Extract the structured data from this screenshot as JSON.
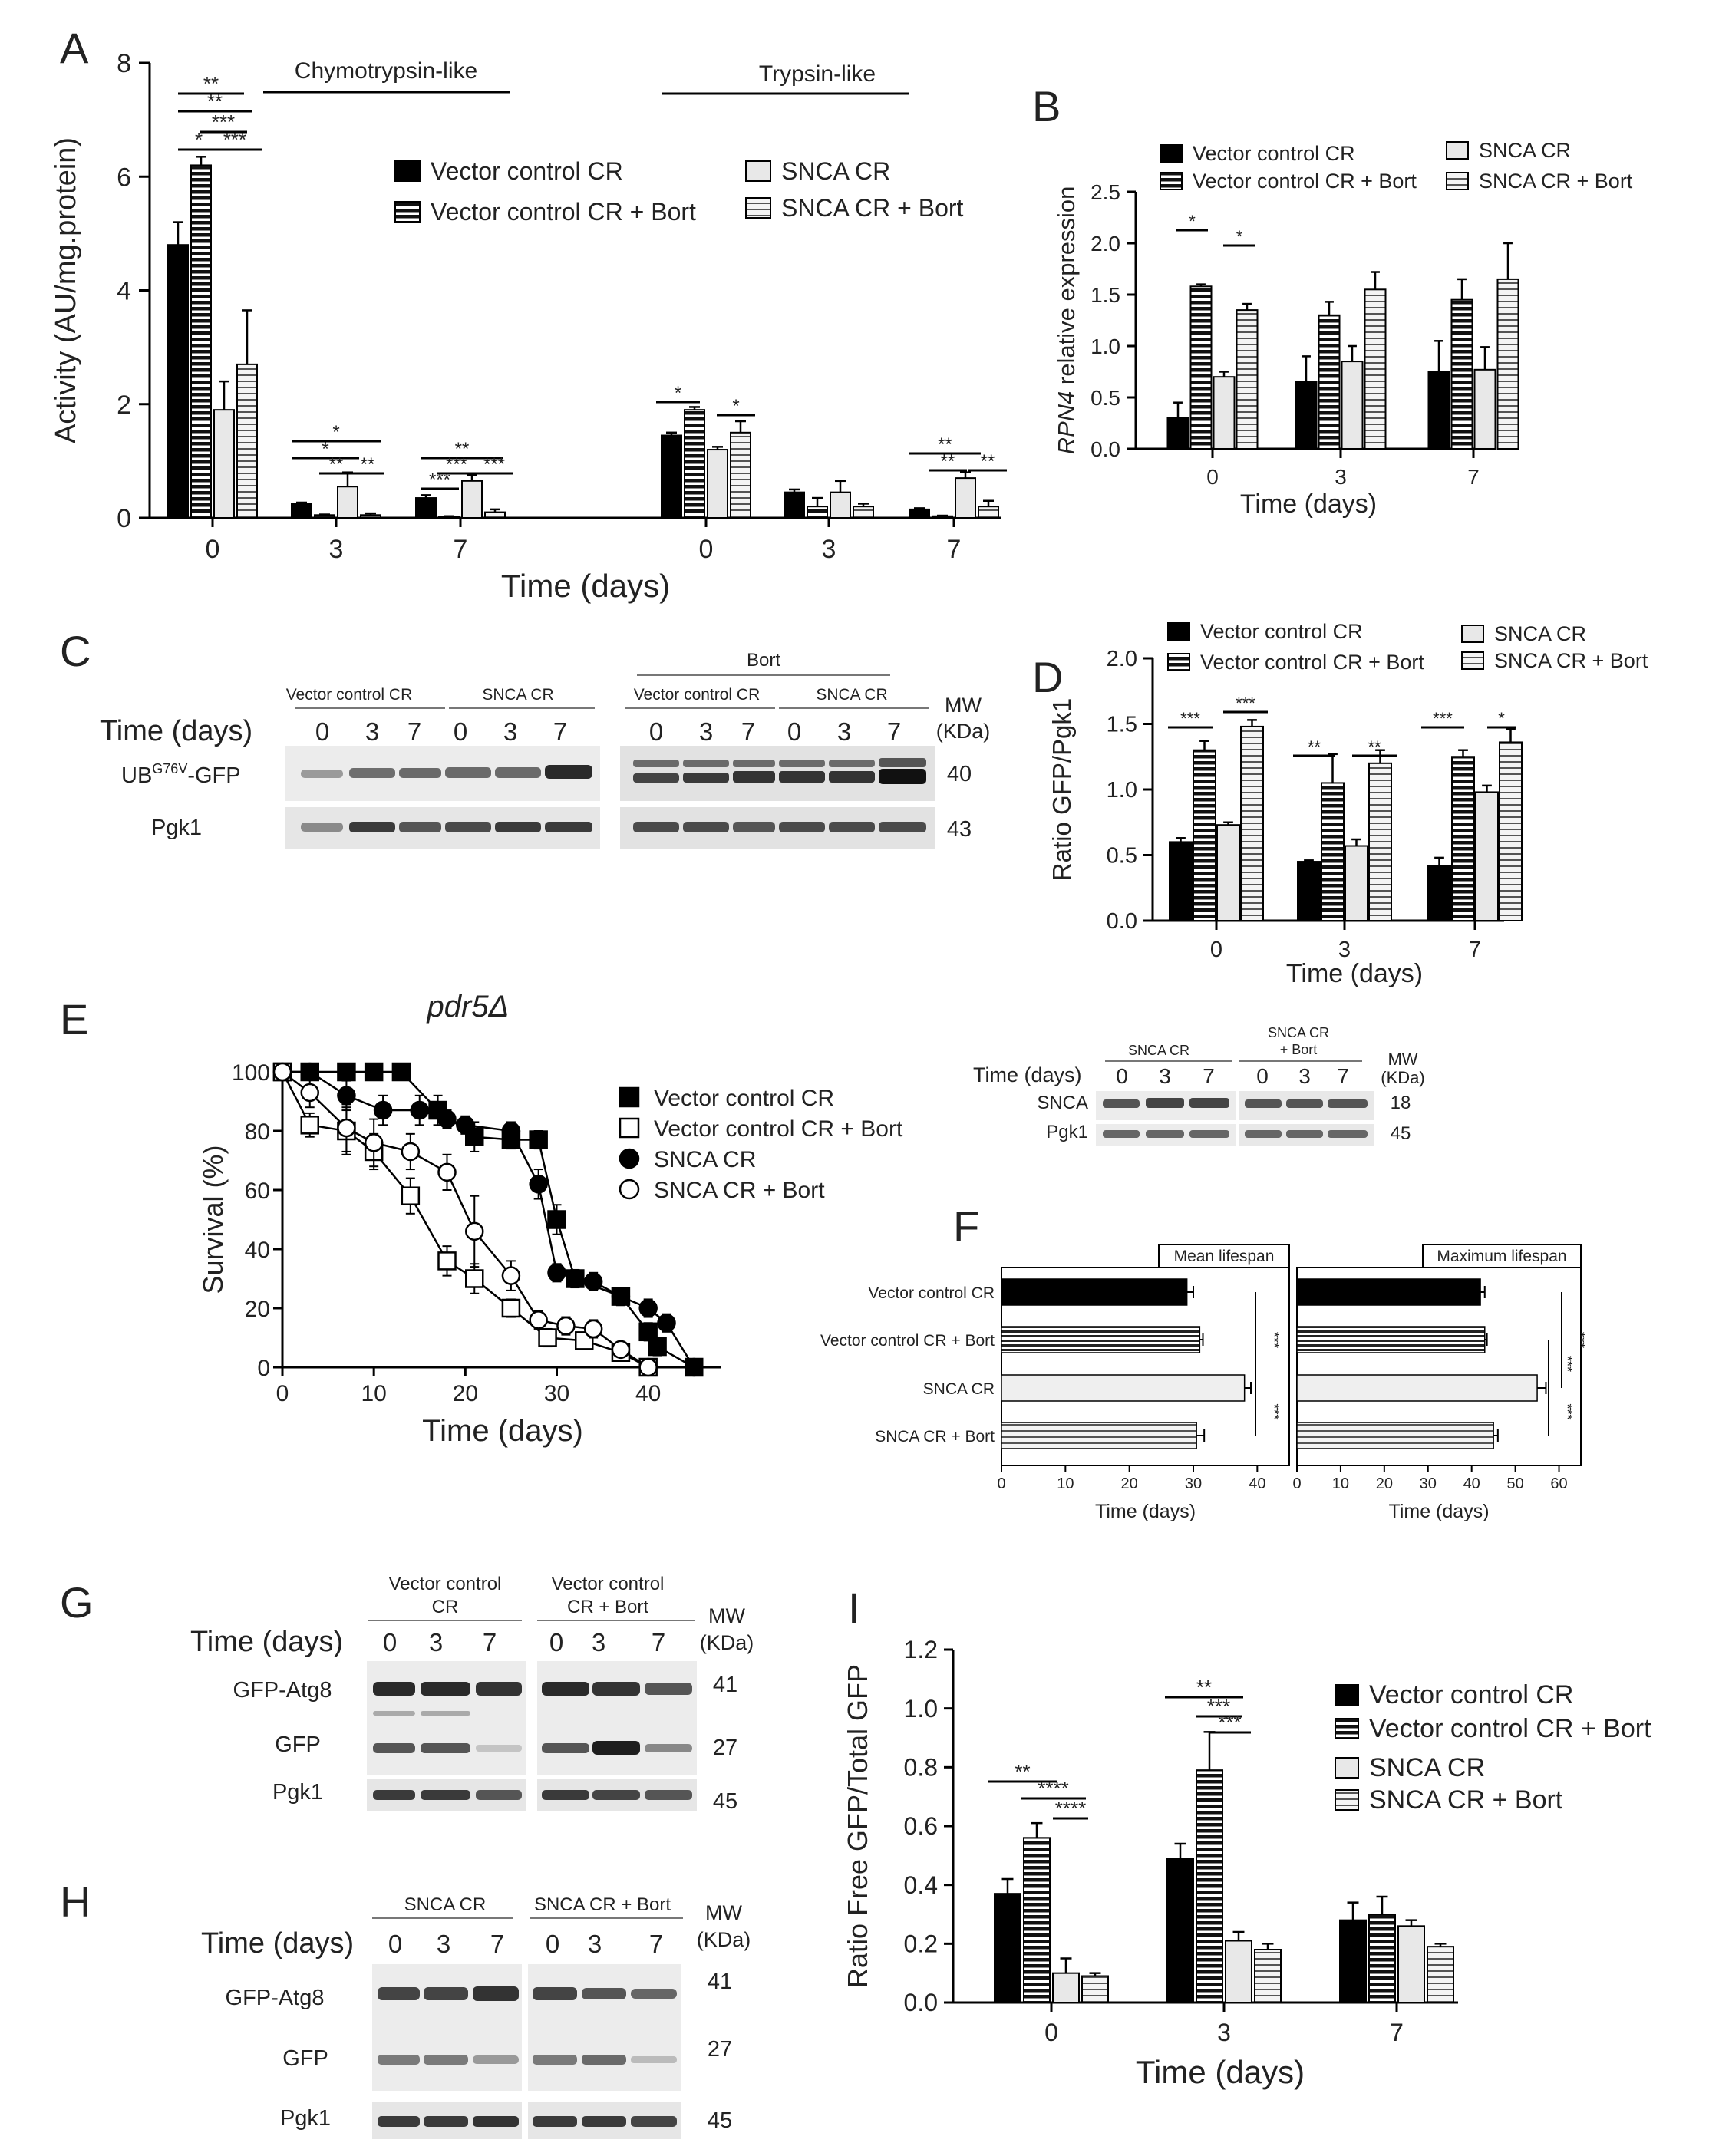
{
  "panel_letters": {
    "A": "A",
    "B": "B",
    "C": "C",
    "D": "D",
    "E": "E",
    "F": "F",
    "G": "G",
    "H": "H",
    "I": "I"
  },
  "colors": {
    "black": "#000000",
    "light": "#e6e6e6",
    "stripe": "#000000",
    "blot_bg": "#e8e8e8",
    "band": "#3a3a3a"
  },
  "legend_group_1": [
    "Vector control CR",
    "Vector control CR + Bort",
    "SNCA CR",
    "SNCA CR + Bort"
  ],
  "chart_data": [
    {
      "panel": "A",
      "type": "bar",
      "ylabel": "Activity (AU/mg.protein)",
      "xlabel": "Time (days)",
      "ylim": [
        0,
        8
      ],
      "yticks": [
        0,
        2,
        4,
        6,
        8
      ],
      "groups": [
        {
          "label": "Chymotrypsin-like",
          "categories": [
            "0",
            "3",
            "7"
          ]
        },
        {
          "label": "Trypsin-like",
          "categories": [
            "0",
            "3",
            "7"
          ]
        }
      ],
      "series": [
        {
          "name": "Vector control CR",
          "style": "solid",
          "values": [
            4.8,
            0.25,
            0.35,
            1.45,
            0.45,
            0.15
          ],
          "err": [
            0.4,
            0.02,
            0.05,
            0.05,
            0.05,
            0.02
          ]
        },
        {
          "name": "Vector control CR + Bort",
          "style": "hstripe",
          "values": [
            6.2,
            0.05,
            0.02,
            1.9,
            0.2,
            0.03
          ],
          "err": [
            0.15,
            0.01,
            0.01,
            0.05,
            0.15,
            0.01
          ]
        },
        {
          "name": "SNCA CR",
          "style": "light",
          "values": [
            1.9,
            0.55,
            0.65,
            1.2,
            0.45,
            0.7
          ],
          "err": [
            0.5,
            0.25,
            0.1,
            0.05,
            0.2,
            0.1
          ]
        },
        {
          "name": "SNCA CR + Bort",
          "style": "lstripe",
          "values": [
            2.7,
            0.05,
            0.1,
            1.5,
            0.2,
            0.2
          ],
          "err": [
            0.95,
            0.03,
            0.05,
            0.2,
            0.05,
            0.1
          ]
        }
      ]
    },
    {
      "panel": "B",
      "type": "bar",
      "ylabel": "RPN4 relative expression",
      "xlabel": "Time (days)",
      "ylim": [
        0,
        2.5
      ],
      "yticks": [
        "0.0",
        "0.5",
        "1.0",
        "1.5",
        "2.0",
        "2.5"
      ],
      "categories": [
        "0",
        "3",
        "7"
      ],
      "series": [
        {
          "name": "Vector control CR",
          "style": "solid",
          "values": [
            0.3,
            0.65,
            0.75
          ],
          "err": [
            0.15,
            0.25,
            0.3
          ]
        },
        {
          "name": "Vector control CR + Bort",
          "style": "hstripe",
          "values": [
            1.58,
            1.3,
            1.45
          ],
          "err": [
            0.02,
            0.13,
            0.2
          ]
        },
        {
          "name": "SNCA CR",
          "style": "light",
          "values": [
            0.7,
            0.85,
            0.77
          ],
          "err": [
            0.05,
            0.15,
            0.22
          ]
        },
        {
          "name": "SNCA CR + Bort",
          "style": "lstripe",
          "values": [
            1.35,
            1.55,
            1.65
          ],
          "err": [
            0.06,
            0.17,
            0.35
          ]
        }
      ]
    },
    {
      "panel": "D",
      "type": "bar",
      "ylabel": "Ratio GFP/Pgk1",
      "xlabel": "Time (days)",
      "ylim": [
        0,
        2
      ],
      "yticks": [
        "0.0",
        "0.5",
        "1.0",
        "1.5",
        "2.0"
      ],
      "categories": [
        "0",
        "3",
        "7"
      ],
      "series": [
        {
          "name": "Vector control CR",
          "style": "solid",
          "values": [
            0.6,
            0.45,
            0.42
          ],
          "err": [
            0.03,
            0.01,
            0.06
          ]
        },
        {
          "name": "Vector control CR + Bort",
          "style": "hstripe",
          "values": [
            1.3,
            1.05,
            1.25
          ],
          "err": [
            0.07,
            0.22,
            0.05
          ]
        },
        {
          "name": "SNCA  CR",
          "style": "light",
          "values": [
            0.73,
            0.57,
            0.98
          ],
          "err": [
            0.02,
            0.05,
            0.05
          ]
        },
        {
          "name": "SNCA CR + Bort",
          "style": "lstripe",
          "values": [
            1.48,
            1.2,
            1.36
          ],
          "err": [
            0.05,
            0.1,
            0.1
          ]
        }
      ]
    },
    {
      "panel": "E",
      "type": "line",
      "title": "pdr5Δ",
      "ylabel": "Survival (%)",
      "xlabel": "Time (days)",
      "xlim": [
        0,
        48
      ],
      "ylim": [
        0,
        100
      ],
      "xticks": [
        0,
        10,
        20,
        30,
        40
      ],
      "yticks": [
        0,
        20,
        40,
        60,
        80,
        100
      ],
      "series": [
        {
          "name": "Vector control CR",
          "marker": "filled-square",
          "points": [
            [
              0,
              100
            ],
            [
              3,
              100
            ],
            [
              7,
              100
            ],
            [
              10,
              100
            ],
            [
              13,
              100
            ],
            [
              17,
              87
            ],
            [
              21,
              78
            ],
            [
              25,
              77
            ],
            [
              28,
              77
            ],
            [
              30,
              50
            ],
            [
              32,
              30
            ],
            [
              37,
              24
            ],
            [
              40,
              12
            ],
            [
              41,
              7
            ],
            [
              45,
              0
            ]
          ],
          "err": [
            0,
            0,
            0,
            0,
            0,
            5,
            5,
            3,
            3,
            5,
            3,
            3,
            3,
            3,
            0
          ]
        },
        {
          "name": "Vector control CR + Bort",
          "marker": "open-square",
          "points": [
            [
              0,
              100
            ],
            [
              3,
              82
            ],
            [
              7,
              80
            ],
            [
              10,
              73
            ],
            [
              14,
              58
            ],
            [
              18,
              36
            ],
            [
              21,
              30
            ],
            [
              25,
              20
            ],
            [
              29,
              10
            ],
            [
              33,
              9
            ],
            [
              37,
              5
            ],
            [
              40,
              0
            ]
          ],
          "err": [
            0,
            4,
            8,
            6,
            6,
            5,
            5,
            3,
            3,
            2,
            2,
            0
          ]
        },
        {
          "name": "SNCA CR",
          "marker": "filled-circle",
          "points": [
            [
              0,
              100
            ],
            [
              3,
              100
            ],
            [
              7,
              92
            ],
            [
              11,
              87
            ],
            [
              15,
              87
            ],
            [
              18,
              84
            ],
            [
              20,
              82
            ],
            [
              25,
              80
            ],
            [
              28,
              62
            ],
            [
              30,
              32
            ],
            [
              34,
              29
            ],
            [
              37,
              24
            ],
            [
              40,
              20
            ],
            [
              42,
              15
            ],
            [
              45,
              0
            ]
          ],
          "err": [
            0,
            0,
            5,
            5,
            5,
            3,
            3,
            3,
            5,
            3,
            3,
            3,
            3,
            3,
            0
          ]
        },
        {
          "name": "SNCA CR + Bort",
          "marker": "open-circle",
          "points": [
            [
              0,
              100
            ],
            [
              3,
              93
            ],
            [
              7,
              81
            ],
            [
              10,
              76
            ],
            [
              14,
              73
            ],
            [
              18,
              66
            ],
            [
              21,
              46
            ],
            [
              25,
              31
            ],
            [
              28,
              16
            ],
            [
              31,
              14
            ],
            [
              34,
              13
            ],
            [
              37,
              6
            ],
            [
              40,
              0
            ]
          ],
          "err": [
            0,
            5,
            8,
            8,
            6,
            6,
            12,
            5,
            3,
            3,
            3,
            2,
            0
          ]
        }
      ]
    },
    {
      "panel": "F",
      "type": "bar",
      "orientation": "horizontal",
      "categories": [
        "Vector control CR",
        "Vector control CR + Bort",
        "SNCA CR",
        "SNCA CR + Bort"
      ],
      "subplots": [
        {
          "title": "Mean lifespan",
          "xlabel": "Time (days)",
          "xlim": [
            0,
            45
          ],
          "xticks": [
            0,
            10,
            20,
            30,
            40
          ],
          "values": [
            29,
            31,
            38,
            30.5
          ],
          "err": [
            1,
            0.5,
            1,
            1.2
          ]
        },
        {
          "title": "Maximum lifespan",
          "xlabel": "Time (days)",
          "xlim": [
            0,
            65
          ],
          "xticks": [
            0,
            10,
            20,
            30,
            40,
            50,
            60
          ],
          "values": [
            42,
            43,
            55,
            45
          ],
          "err": [
            1,
            0.5,
            2,
            1
          ]
        }
      ]
    },
    {
      "panel": "I",
      "type": "bar",
      "ylabel": "Ratio Free GFP/Total GFP",
      "xlabel": "Time (days)",
      "ylim": [
        0,
        1.2
      ],
      "yticks": [
        "0.0",
        "0.2",
        "0.4",
        "0.6",
        "0.8",
        "1.0",
        "1.2"
      ],
      "categories": [
        "0",
        "3",
        "7"
      ],
      "series": [
        {
          "name": "Vector control CR",
          "style": "solid",
          "values": [
            0.37,
            0.49,
            0.28
          ],
          "err": [
            0.05,
            0.05,
            0.06
          ]
        },
        {
          "name": "Vector control CR + Bort",
          "style": "hstripe",
          "values": [
            0.56,
            0.79,
            0.3
          ],
          "err": [
            0.05,
            0.13,
            0.06
          ]
        },
        {
          "name": "SNCA CR",
          "style": "light",
          "values": [
            0.1,
            0.21,
            0.26
          ],
          "err": [
            0.05,
            0.03,
            0.02
          ]
        },
        {
          "name": "SNCA CR + Bort",
          "style": "lstripe",
          "values": [
            0.09,
            0.18,
            0.19
          ],
          "err": [
            0.01,
            0.02,
            0.01
          ]
        }
      ]
    }
  ],
  "annotations": {
    "A_chymo_sig": [
      "*",
      "**",
      "**",
      "***",
      "***"
    ],
    "A_d3_sig": [
      "*",
      "*",
      "**",
      "**"
    ],
    "A_d7_sig": [
      "**",
      "***",
      "***",
      "***"
    ],
    "A_trypsin_d0_sig": [
      "*",
      "*"
    ],
    "A_trypsin_d7_sig": [
      "**",
      "**",
      "**"
    ],
    "B_sig": [
      "*",
      "*"
    ],
    "D_sig": [
      "***",
      "***",
      "**",
      "**",
      "***",
      "*"
    ],
    "F_sig_mean": [
      "***",
      "***"
    ],
    "F_sig_max": [
      "***",
      "***",
      "***"
    ],
    "I_sig_d0": [
      "**",
      "****",
      "****"
    ],
    "I_sig_d3": [
      "**",
      "***",
      "***"
    ]
  },
  "blots": {
    "C": {
      "bort_label": "Bort",
      "group_labels": [
        "Vector control CR",
        "SNCA CR",
        "Vector control CR",
        "SNCA CR"
      ],
      "time_label": "Time (days)",
      "times": [
        "0",
        "3",
        "7",
        "0",
        "3",
        "7",
        "0",
        "3",
        "7",
        "0",
        "3",
        "7"
      ],
      "mw_label": "MW\n(KDa)",
      "mw": "MW",
      "kda": "(KDa)",
      "rows": [
        {
          "label_main": "UB",
          "label_sup": "G76V",
          "label_end": "-GFP",
          "mw": "40"
        },
        {
          "label": "Pgk1",
          "mw": "43"
        }
      ]
    },
    "E_inset": {
      "group_labels": [
        "SNCA CR",
        "SNCA CR\n+ Bort"
      ],
      "g1": "SNCA CR",
      "g2a": "SNCA CR",
      "g2b": "+ Bort",
      "time_label": "Time (days)",
      "times": [
        "0",
        "3",
        "7",
        "0",
        "3",
        "7"
      ],
      "mw": "MW",
      "kda": "(KDa)",
      "rows": [
        {
          "label": "SNCA",
          "mw": "18"
        },
        {
          "label": "Pgk1",
          "mw": "45"
        }
      ]
    },
    "G": {
      "g1a": "Vector control",
      "g1b": "CR",
      "g2a": "Vector control",
      "g2b": "CR + Bort",
      "time_label": "Time (days)",
      "times": [
        "0",
        "3",
        "7",
        "0",
        "3",
        "7"
      ],
      "mw": "MW",
      "kda": "(KDa)",
      "rows": [
        {
          "label": "GFP-Atg8",
          "mw": "41"
        },
        {
          "label": "GFP",
          "mw": "27"
        },
        {
          "label": "Pgk1",
          "mw": "45"
        }
      ]
    },
    "H": {
      "g1": "SNCA CR",
      "g2": "SNCA CR + Bort",
      "time_label": "Time (days)",
      "times": [
        "0",
        "3",
        "7",
        "0",
        "3",
        "7"
      ],
      "mw": "MW",
      "kda": "(KDa)",
      "rows": [
        {
          "label": "GFP-Atg8",
          "mw": "41"
        },
        {
          "label": "GFP",
          "mw": "27"
        },
        {
          "label": "Pgk1",
          "mw": "45"
        }
      ]
    }
  }
}
